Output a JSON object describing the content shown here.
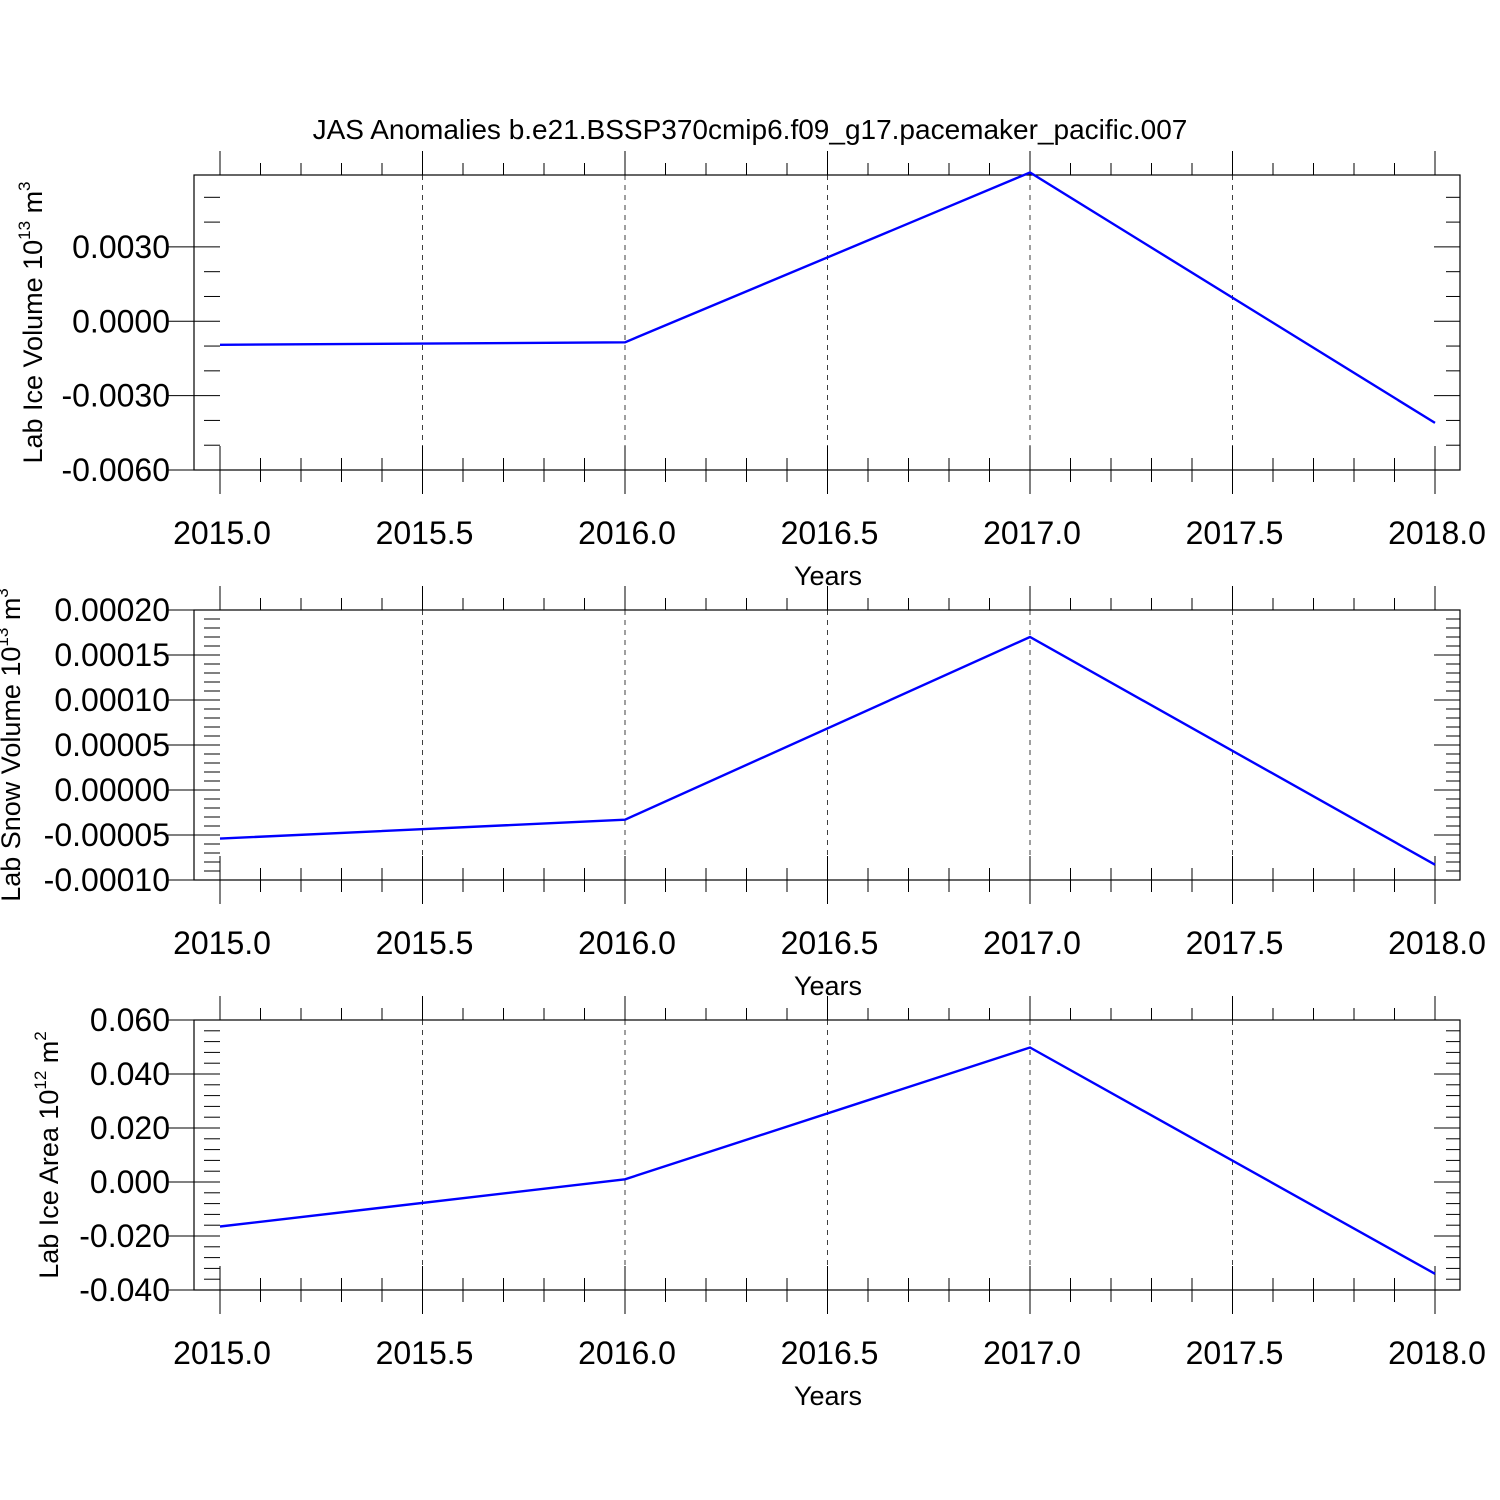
{
  "title": "JAS Anomalies b.e21.BSSP370cmip6.f09_g17.pacemaker_pacific.007",
  "series_color": "#0000ff",
  "chart_data": [
    {
      "type": "line",
      "title": "JAS Anomalies b.e21.BSSP370cmip6.f09_g17.pacemaker_pacific.007",
      "xlabel": "Years",
      "ylabel": "Lab Ice Volume 10",
      "ylabel_exp": "13",
      "ylabel_unit": " m",
      "ylabel_unit_exp": "3",
      "xlim": [
        2015.0,
        2018.0
      ],
      "ylim": [
        -0.006,
        0.0059
      ],
      "x": [
        2015.0,
        2016.0,
        2017.0,
        2018.0
      ],
      "y": [
        -0.00095,
        -0.00085,
        0.006,
        -0.0041
      ],
      "x_ticks": [
        "2015.0",
        "2015.5",
        "2016.0",
        "2016.5",
        "2017.0",
        "2017.5",
        "2018.0"
      ],
      "x_tick_values": [
        2015.0,
        2015.5,
        2016.0,
        2016.5,
        2017.0,
        2017.5,
        2018.0
      ],
      "y_ticks": [
        "0.0030",
        "0.0000",
        "-0.0030",
        "-0.0060"
      ],
      "y_tick_values": [
        0.003,
        0.0,
        -0.003,
        -0.006
      ],
      "y_minor_step": 0.001,
      "grid": "dashed vertical at x major ticks"
    },
    {
      "type": "line",
      "xlabel": "Years",
      "ylabel": "Lab Snow Volume 10",
      "ylabel_exp": "13",
      "ylabel_unit": " m",
      "ylabel_unit_exp": "3",
      "xlim": [
        2015.0,
        2018.0
      ],
      "ylim": [
        -0.0001,
        0.0002
      ],
      "x": [
        2015.0,
        2016.0,
        2017.0,
        2018.0
      ],
      "y": [
        -5.4e-05,
        -3.3e-05,
        0.00017,
        -8.3e-05
      ],
      "x_ticks": [
        "2015.0",
        "2015.5",
        "2016.0",
        "2016.5",
        "2017.0",
        "2017.5",
        "2018.0"
      ],
      "x_tick_values": [
        2015.0,
        2015.5,
        2016.0,
        2016.5,
        2017.0,
        2017.5,
        2018.0
      ],
      "y_ticks": [
        "0.00020",
        "0.00015",
        "0.00010",
        "0.00005",
        "0.00000",
        "-0.00005",
        "-0.00010"
      ],
      "y_tick_values": [
        0.0002,
        0.00015,
        0.0001,
        5e-05,
        0.0,
        -5e-05,
        -0.0001
      ],
      "y_minor_step": 1e-05,
      "grid": "dashed vertical at x major ticks"
    },
    {
      "type": "line",
      "xlabel": "Years",
      "ylabel": "Lab Ice Area 10",
      "ylabel_exp": "12",
      "ylabel_unit": " m",
      "ylabel_unit_exp": "2",
      "xlim": [
        2015.0,
        2018.0
      ],
      "ylim": [
        -0.04,
        0.06
      ],
      "x": [
        2015.0,
        2016.0,
        2017.0,
        2018.0
      ],
      "y": [
        -0.0165,
        0.001,
        0.0498,
        -0.034
      ],
      "x_ticks": [
        "2015.0",
        "2015.5",
        "2016.0",
        "2016.5",
        "2017.0",
        "2017.5",
        "2018.0"
      ],
      "x_tick_values": [
        2015.0,
        2015.5,
        2016.0,
        2016.5,
        2017.0,
        2017.5,
        2018.0
      ],
      "y_ticks": [
        "0.060",
        "0.040",
        "0.020",
        "0.000",
        "-0.020",
        "-0.040"
      ],
      "y_tick_values": [
        0.06,
        0.04,
        0.02,
        0.0,
        -0.02,
        -0.04
      ],
      "y_minor_step": 0.004,
      "grid": "dashed vertical at x major ticks"
    }
  ]
}
